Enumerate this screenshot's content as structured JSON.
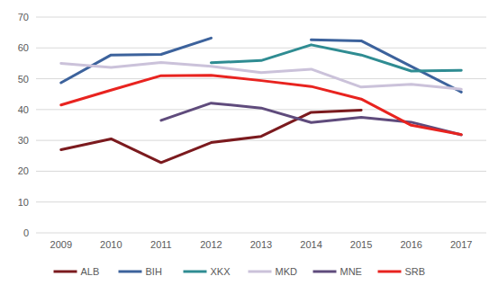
{
  "chart_data": {
    "type": "line",
    "categories": [
      "2009",
      "2010",
      "2011",
      "2012",
      "2013",
      "2014",
      "2015",
      "2016",
      "2017"
    ],
    "series": [
      {
        "name": "ALB",
        "color": "#7b1a1e",
        "values": [
          27,
          30.5,
          22.8,
          29.3,
          31.3,
          39.1,
          39.8,
          null,
          null
        ]
      },
      {
        "name": "BIH",
        "color": "#3c629c",
        "values": [
          48.7,
          57.7,
          57.9,
          63.2,
          null,
          62.6,
          62.3,
          54,
          45.7
        ]
      },
      {
        "name": "XKX",
        "color": "#2f8c92",
        "values": [
          null,
          null,
          null,
          55.2,
          55.9,
          61,
          57.7,
          52.5,
          52.7
        ]
      },
      {
        "name": "MKD",
        "color": "#cbc2da",
        "values": [
          55,
          53.7,
          55.3,
          54,
          52,
          53.1,
          47.3,
          48.2,
          46.6
        ]
      },
      {
        "name": "MNE",
        "color": "#5f4b7c",
        "values": [
          null,
          null,
          36.5,
          42.1,
          40.5,
          35.8,
          37.5,
          35.9,
          31.8
        ]
      },
      {
        "name": "SRB",
        "color": "#e8231f",
        "values": [
          41.5,
          46.3,
          51,
          51.1,
          49.4,
          47.5,
          43.4,
          34.9,
          31.9
        ]
      }
    ],
    "ylim": [
      0,
      70
    ],
    "yticks": [
      0,
      10,
      20,
      30,
      40,
      50,
      60,
      70
    ],
    "grid": true,
    "legend": "bottom"
  }
}
